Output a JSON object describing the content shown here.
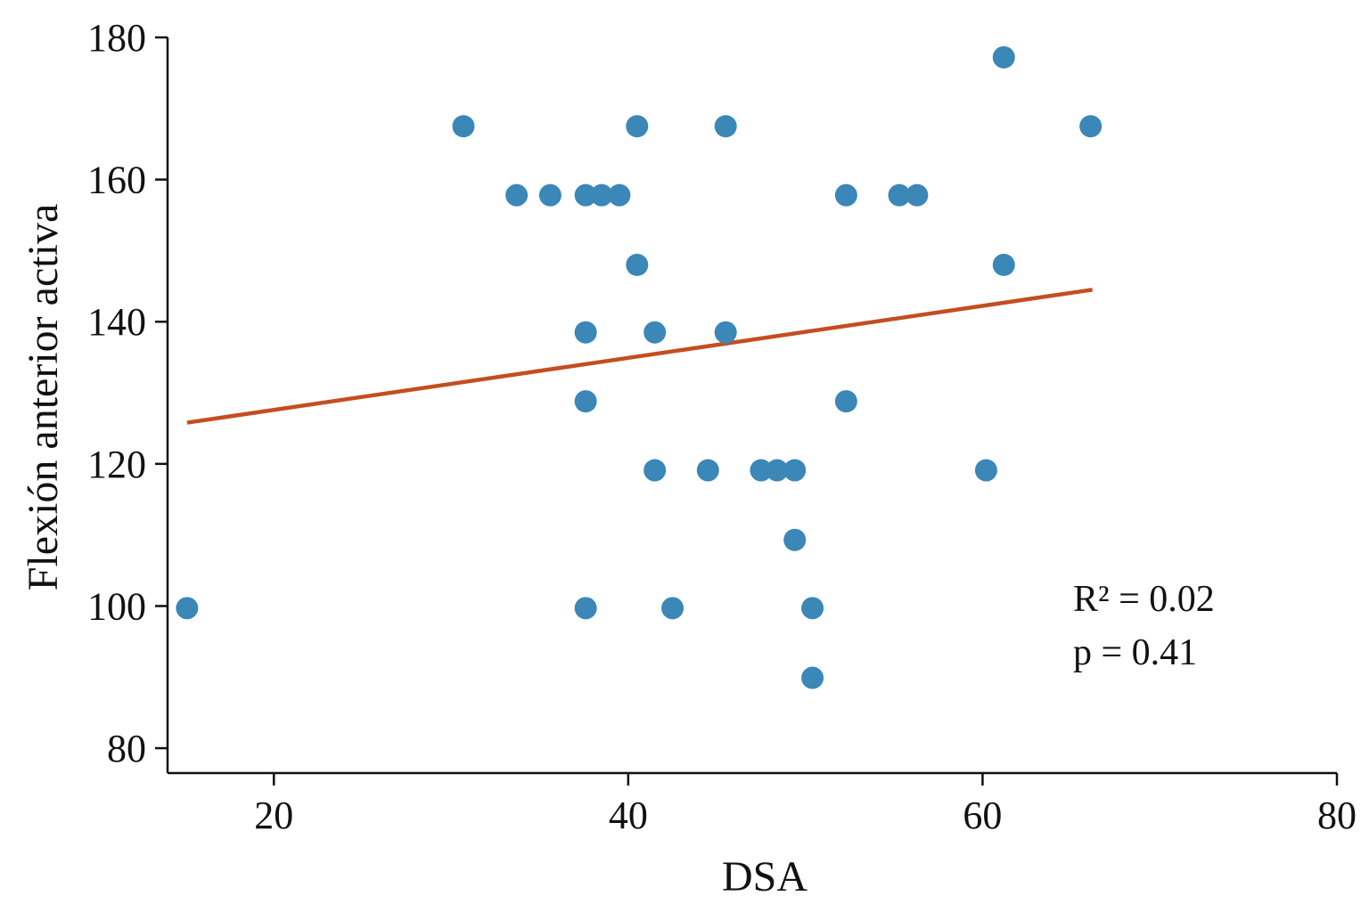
{
  "chart_data": {
    "type": "scatter",
    "title": "",
    "xlabel": "DSA",
    "ylabel": "Flexión anterior activa",
    "xlim": [
      14,
      80
    ],
    "ylim": [
      76.5,
      180
    ],
    "xticks": [
      20,
      40,
      60,
      80
    ],
    "yticks": [
      80,
      100,
      120,
      140,
      160,
      180
    ],
    "grid": false,
    "legend": "none",
    "colors": {
      "points": "#3a87b8",
      "regression_line": "#c34e21",
      "axis": "#111111"
    },
    "points": [
      {
        "x": 15.1,
        "y": 99.7
      },
      {
        "x": 30.7,
        "y": 167.5
      },
      {
        "x": 33.7,
        "y": 157.8
      },
      {
        "x": 35.6,
        "y": 157.8
      },
      {
        "x": 37.6,
        "y": 157.8
      },
      {
        "x": 38.5,
        "y": 157.8
      },
      {
        "x": 39.5,
        "y": 157.8
      },
      {
        "x": 40.5,
        "y": 167.5
      },
      {
        "x": 45.5,
        "y": 167.5
      },
      {
        "x": 37.6,
        "y": 138.5
      },
      {
        "x": 41.5,
        "y": 138.5
      },
      {
        "x": 45.5,
        "y": 138.5
      },
      {
        "x": 40.5,
        "y": 148.0
      },
      {
        "x": 37.6,
        "y": 128.8
      },
      {
        "x": 41.5,
        "y": 119.1
      },
      {
        "x": 44.5,
        "y": 119.1
      },
      {
        "x": 47.5,
        "y": 119.1
      },
      {
        "x": 48.4,
        "y": 119.1
      },
      {
        "x": 49.4,
        "y": 119.1
      },
      {
        "x": 49.4,
        "y": 109.3
      },
      {
        "x": 37.6,
        "y": 99.7
      },
      {
        "x": 42.5,
        "y": 99.7
      },
      {
        "x": 50.4,
        "y": 99.7
      },
      {
        "x": 50.4,
        "y": 89.9
      },
      {
        "x": 52.3,
        "y": 157.8
      },
      {
        "x": 55.3,
        "y": 157.8
      },
      {
        "x": 56.3,
        "y": 157.8
      },
      {
        "x": 52.3,
        "y": 128.8
      },
      {
        "x": 61.2,
        "y": 177.2
      },
      {
        "x": 66.1,
        "y": 167.5
      },
      {
        "x": 61.2,
        "y": 148.0
      },
      {
        "x": 60.2,
        "y": 119.1
      }
    ],
    "regression_line": {
      "x": [
        15.1,
        66.2
      ],
      "y": [
        125.8,
        144.5
      ]
    },
    "annotation": {
      "r2_label": "R² = 0.02",
      "p_label": "p = 0.41"
    }
  }
}
